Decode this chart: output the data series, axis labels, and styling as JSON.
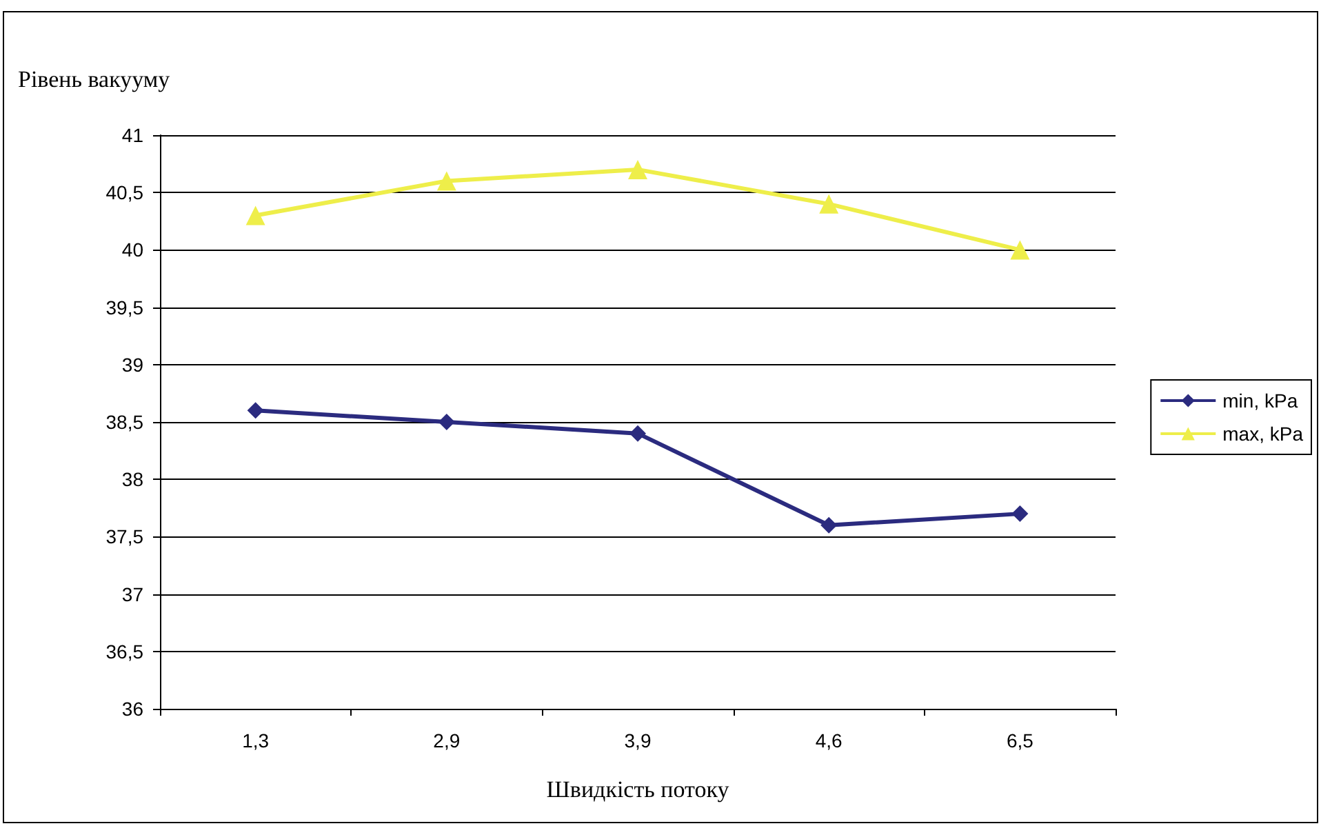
{
  "chart_data": {
    "type": "line",
    "xlabel": "Швидкість потоку",
    "ylabel": "Рівень вакууму",
    "categories": [
      "1,3",
      "2,9",
      "3,9",
      "4,6",
      "6,5"
    ],
    "series": [
      {
        "name": "min, kPa",
        "color": "#2b2b7f",
        "marker": "diamond",
        "values": [
          38.6,
          38.5,
          38.4,
          37.6,
          37.7
        ]
      },
      {
        "name": "max, kPa",
        "color": "#eeee4a",
        "marker": "triangle",
        "values": [
          40.3,
          40.6,
          40.7,
          40.4,
          40.0
        ]
      }
    ],
    "ylim": [
      36,
      41
    ],
    "yticks": [
      36,
      {
        "value": 36.5,
        "label": "36,5"
      },
      37,
      {
        "value": 37.5,
        "label": "37,5"
      },
      38,
      {
        "value": 38.5,
        "label": "38,5"
      },
      39,
      {
        "value": 39.5,
        "label": "39,5"
      },
      40,
      {
        "value": 40.5,
        "label": "40,5"
      },
      41
    ],
    "grid": "y",
    "legend": "right",
    "line_style": "solid"
  }
}
